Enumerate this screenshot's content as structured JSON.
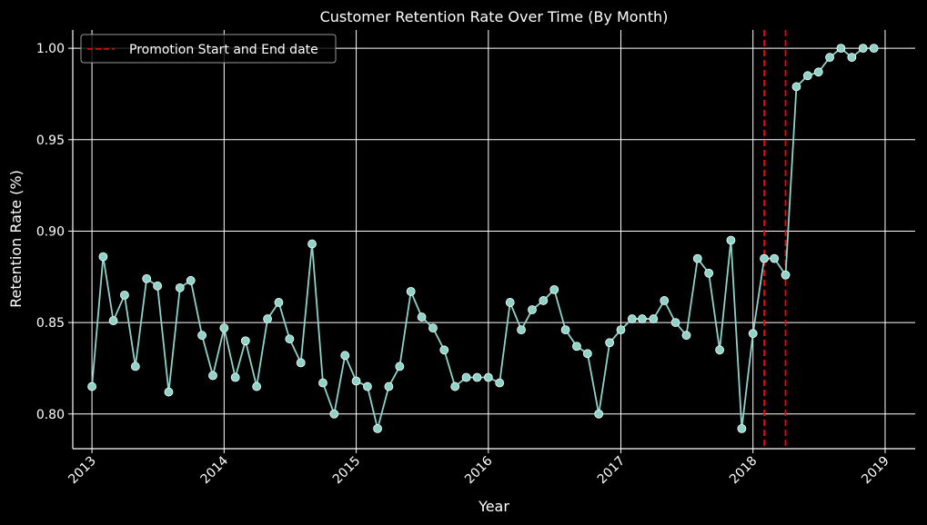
{
  "chart_data": {
    "type": "line",
    "title": "Customer Retention Rate Over Time (By Month)",
    "xlabel": "Year",
    "ylabel": "Retention Rate (%)",
    "xlim": [
      "2012-11-09",
      "2019-03-25"
    ],
    "ylim": [
      0.781,
      1.01
    ],
    "xticks": [
      "2013",
      "2014",
      "2015",
      "2016",
      "2017",
      "2018",
      "2019"
    ],
    "yticks": [
      "0.80",
      "0.85",
      "0.90",
      "0.95",
      "1.00"
    ],
    "grid": true,
    "legend": {
      "position": "top-left",
      "entries": [
        {
          "label": "Promotion Start and End date",
          "style": "dashed",
          "color": "#ff0000"
        }
      ]
    },
    "vlines": [
      "2018-02-01",
      "2018-04-01"
    ],
    "series": [
      {
        "color": "#8dd3c7",
        "marker": "circle",
        "x": [
          "2013-01-01",
          "2013-02-01",
          "2013-03-01",
          "2013-04-01",
          "2013-05-01",
          "2013-06-01",
          "2013-07-01",
          "2013-08-01",
          "2013-09-01",
          "2013-10-01",
          "2013-11-01",
          "2013-12-01",
          "2014-01-01",
          "2014-02-01",
          "2014-03-01",
          "2014-04-01",
          "2014-05-01",
          "2014-06-01",
          "2014-07-01",
          "2014-08-01",
          "2014-09-01",
          "2014-10-01",
          "2014-11-01",
          "2014-12-01",
          "2015-01-01",
          "2015-02-01",
          "2015-03-01",
          "2015-04-01",
          "2015-05-01",
          "2015-06-01",
          "2015-07-01",
          "2015-08-01",
          "2015-09-01",
          "2015-10-01",
          "2015-11-01",
          "2015-12-01",
          "2016-01-01",
          "2016-02-01",
          "2016-03-01",
          "2016-04-01",
          "2016-05-01",
          "2016-06-01",
          "2016-07-01",
          "2016-08-01",
          "2016-09-01",
          "2016-10-01",
          "2016-11-01",
          "2016-12-01",
          "2017-01-01",
          "2017-02-01",
          "2017-03-01",
          "2017-04-01",
          "2017-05-01",
          "2017-06-01",
          "2017-07-01",
          "2017-08-01",
          "2017-09-01",
          "2017-10-01",
          "2017-11-01",
          "2017-12-01",
          "2018-01-01",
          "2018-02-01",
          "2018-03-01",
          "2018-04-01",
          "2018-05-01",
          "2018-06-01",
          "2018-07-01",
          "2018-08-01",
          "2018-09-01",
          "2018-10-01",
          "2018-11-01",
          "2018-12-01"
        ],
        "values": [
          0.815,
          0.886,
          0.851,
          0.865,
          0.826,
          0.874,
          0.87,
          0.812,
          0.869,
          0.873,
          0.843,
          0.821,
          0.847,
          0.82,
          0.84,
          0.815,
          0.852,
          0.861,
          0.841,
          0.828,
          0.893,
          0.817,
          0.8,
          0.832,
          0.818,
          0.815,
          0.792,
          0.815,
          0.826,
          0.867,
          0.853,
          0.847,
          0.835,
          0.815,
          0.82,
          0.82,
          0.82,
          0.817,
          0.861,
          0.846,
          0.857,
          0.862,
          0.868,
          0.846,
          0.837,
          0.833,
          0.8,
          0.839,
          0.846,
          0.852,
          0.852,
          0.852,
          0.862,
          0.85,
          0.843,
          0.885,
          0.877,
          0.835,
          0.895,
          0.792,
          0.844,
          0.885,
          0.885,
          0.876,
          0.979,
          0.985,
          0.987,
          0.995,
          1.0,
          0.995,
          1.0,
          1.0
        ]
      }
    ]
  }
}
